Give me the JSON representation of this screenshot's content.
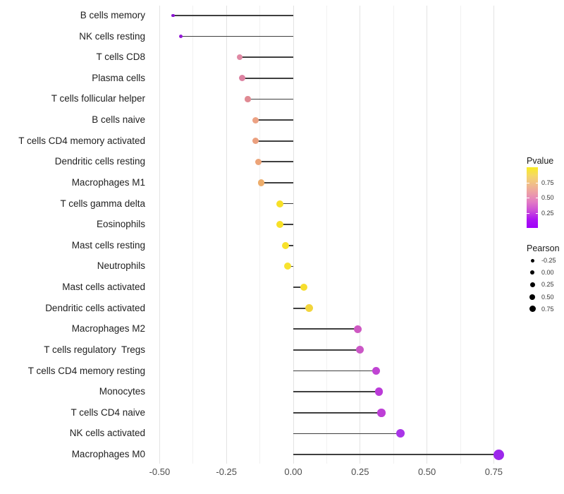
{
  "chart_data": {
    "type": "scatter",
    "subtype": "lollipop-correlation-plot",
    "title": "",
    "xlabel": "",
    "ylabel": "",
    "xlim": [
      -0.54,
      0.8
    ],
    "grid": "major and minor vertical gridlines on white background",
    "x_ticks": [
      -0.5,
      -0.25,
      0.0,
      0.25,
      0.5,
      0.75
    ],
    "x_tick_labels": [
      "-0.50",
      "-0.25",
      "0.00",
      "0.25",
      "0.50",
      "0.75"
    ],
    "x_minor_ticks": [
      -0.375,
      -0.125,
      0.125,
      0.375,
      0.625
    ],
    "segment_color": "#3f3f3f",
    "points": [
      {
        "label": "B cells memory",
        "pearson": -0.45,
        "color": "#8a15d0",
        "size": 4.5
      },
      {
        "label": "NK cells resting",
        "pearson": -0.42,
        "color": "#9318d6",
        "size": 5.5
      },
      {
        "label": "T cells CD8",
        "pearson": -0.2,
        "color": "#e089a4",
        "size": 8.5
      },
      {
        "label": "Plasma cells",
        "pearson": -0.19,
        "color": "#dc82a1",
        "size": 9
      },
      {
        "label": "T cells follicular helper",
        "pearson": -0.17,
        "color": "#e08a93",
        "size": 8.5
      },
      {
        "label": "B cells naive",
        "pearson": -0.14,
        "color": "#eca284",
        "size": 9
      },
      {
        "label": "T cells CD4 memory activated",
        "pearson": -0.14,
        "color": "#eba07f",
        "size": 9
      },
      {
        "label": "Dendritic cells resting",
        "pearson": -0.13,
        "color": "#eca478",
        "size": 9
      },
      {
        "label": "Macrophages M1",
        "pearson": -0.12,
        "color": "#edad6b",
        "size": 9.5
      },
      {
        "label": "T cells gamma delta",
        "pearson": -0.05,
        "color": "#f7e027",
        "size": 10
      },
      {
        "label": "Eosinophils",
        "pearson": -0.05,
        "color": "#f7e027",
        "size": 10
      },
      {
        "label": "Mast cells resting",
        "pearson": -0.03,
        "color": "#f8e22b",
        "size": 10
      },
      {
        "label": "Neutrophils",
        "pearson": -0.02,
        "color": "#f8e32e",
        "size": 10
      },
      {
        "label": "Mast cells activated",
        "pearson": 0.04,
        "color": "#f7de2e",
        "size": 10.5
      },
      {
        "label": "Dendritic cells activated",
        "pearson": 0.06,
        "color": "#f2d53c",
        "size": 11
      },
      {
        "label": "Macrophages M2",
        "pearson": 0.24,
        "color": "#ce58c2",
        "size": 11
      },
      {
        "label": "T cells regulatory  Tregs",
        "pearson": 0.25,
        "color": "#cb57c6",
        "size": 11
      },
      {
        "label": "T cells CD4 memory resting",
        "pearson": 0.31,
        "color": "#c044d3",
        "size": 11.5
      },
      {
        "label": "Monocytes",
        "pearson": 0.32,
        "color": "#bb3bd8",
        "size": 11.5
      },
      {
        "label": "T cells CD4 naive",
        "pearson": 0.33,
        "color": "#bd3fd6",
        "size": 11.5
      },
      {
        "label": "NK cells activated",
        "pearson": 0.4,
        "color": "#a935e8",
        "size": 12
      },
      {
        "label": "Macrophages M0",
        "pearson": 0.77,
        "color": "#9c27eb",
        "size": 15
      }
    ],
    "legend": {
      "pvalue": {
        "title": "Pvalue",
        "tick_labels": [
          "0.75",
          "0.50",
          "0.25"
        ],
        "tick_values": [
          0.75,
          0.5,
          0.25
        ],
        "range": [
          0,
          1
        ],
        "gradient_top_to_bottom": [
          "#f9ec22",
          "#f5d768",
          "#f0bc8b",
          "#ec9da8",
          "#e27bc4",
          "#cc4fd8",
          "#ac14f2",
          "#a000fa"
        ]
      },
      "pearson": {
        "title": "Pearson",
        "items": [
          {
            "label": "-0.25",
            "size": 5
          },
          {
            "label": "0.00",
            "size": 6
          },
          {
            "label": "0.25",
            "size": 7
          },
          {
            "label": "0.50",
            "size": 8
          },
          {
            "label": "0.75",
            "size": 9
          }
        ],
        "dot_color": "#000000"
      }
    }
  }
}
